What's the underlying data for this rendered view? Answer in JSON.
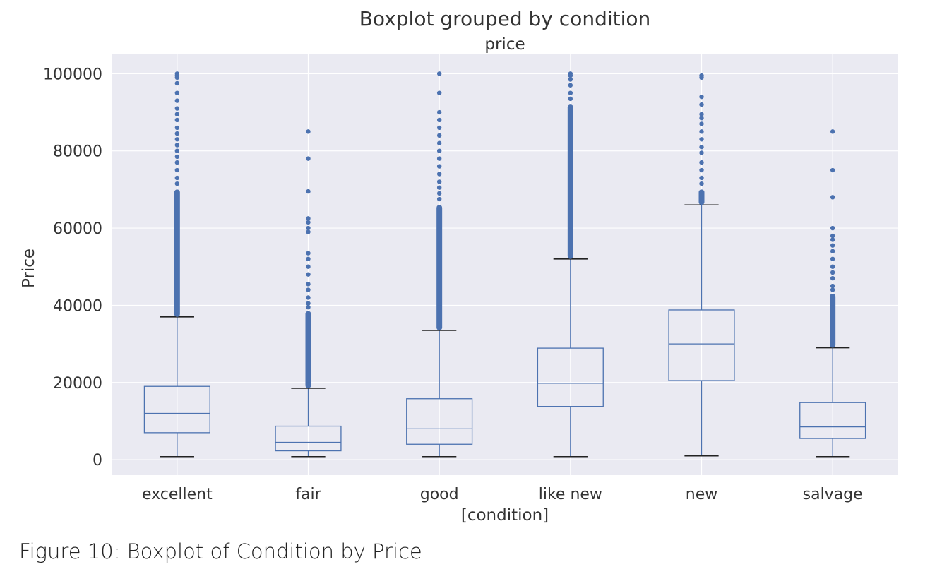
{
  "caption": "Figure 10: Boxplot of Condition by Price",
  "chart_data": {
    "type": "boxplot",
    "title": "Boxplot grouped by condition",
    "subtitle": "price",
    "xlabel": "[condition]",
    "ylabel": "Price",
    "ylim": [
      -4000,
      105000
    ],
    "yticks": [
      0,
      20000,
      40000,
      60000,
      80000,
      100000
    ],
    "ytick_labels": [
      "0",
      "20000",
      "40000",
      "60000",
      "80000",
      "100000"
    ],
    "grid": true,
    "colors": {
      "background": "#EAEAF2",
      "box": "#4C72B0",
      "grid": "#FFFFFF",
      "whisker_cap": "#222222"
    },
    "categories": [
      "excellent",
      "fair",
      "good",
      "like new",
      "new",
      "salvage"
    ],
    "boxes": [
      {
        "category": "excellent",
        "whislo": 800,
        "q1": 7000,
        "median": 12000,
        "q3": 19000,
        "whishi": 37000,
        "outliers_dense": [
          37000,
          70000
        ],
        "outliers": [
          71500,
          73000,
          75000,
          77000,
          78500,
          80000,
          81500,
          83000,
          84500,
          86000,
          88000,
          89500,
          91000,
          93000,
          95000,
          97500,
          99000,
          99500,
          100000
        ]
      },
      {
        "category": "fair",
        "whislo": 800,
        "q1": 2300,
        "median": 4500,
        "q3": 8700,
        "whishi": 18500,
        "outliers_dense": [
          18500,
          38500
        ],
        "outliers": [
          39500,
          40500,
          42000,
          44000,
          45500,
          48000,
          50000,
          52000,
          53500,
          59000,
          60000,
          61500,
          62500,
          69500,
          78000,
          85000
        ]
      },
      {
        "category": "good",
        "whislo": 800,
        "q1": 4000,
        "median": 8000,
        "q3": 15800,
        "whishi": 33500,
        "outliers_dense": [
          33500,
          66000
        ],
        "outliers": [
          67500,
          69000,
          70500,
          72000,
          74000,
          76000,
          78000,
          80000,
          82000,
          84000,
          86000,
          88000,
          90000,
          95000,
          100000
        ]
      },
      {
        "category": "like new",
        "whislo": 800,
        "q1": 13800,
        "median": 19800,
        "q3": 28900,
        "whishi": 52000,
        "outliers_dense": [
          52000,
          92000
        ],
        "outliers": [
          93500,
          95000,
          97000,
          98500,
          99500,
          100000
        ]
      },
      {
        "category": "new",
        "whislo": 1000,
        "q1": 20500,
        "median": 30000,
        "q3": 38800,
        "whishi": 66000,
        "outliers_dense": [
          66000,
          70000
        ],
        "outliers": [
          71500,
          73000,
          75000,
          77000,
          79500,
          81000,
          83000,
          85000,
          87000,
          88500,
          89500,
          92000,
          94000,
          99000,
          99500
        ]
      },
      {
        "category": "salvage",
        "whislo": 800,
        "q1": 5500,
        "median": 8500,
        "q3": 14800,
        "whishi": 29000,
        "outliers_dense": [
          29000,
          43000
        ],
        "outliers": [
          44000,
          45000,
          47000,
          48500,
          50000,
          52000,
          54000,
          55500,
          57000,
          58000,
          60000,
          68000,
          75000,
          85000
        ]
      }
    ]
  }
}
